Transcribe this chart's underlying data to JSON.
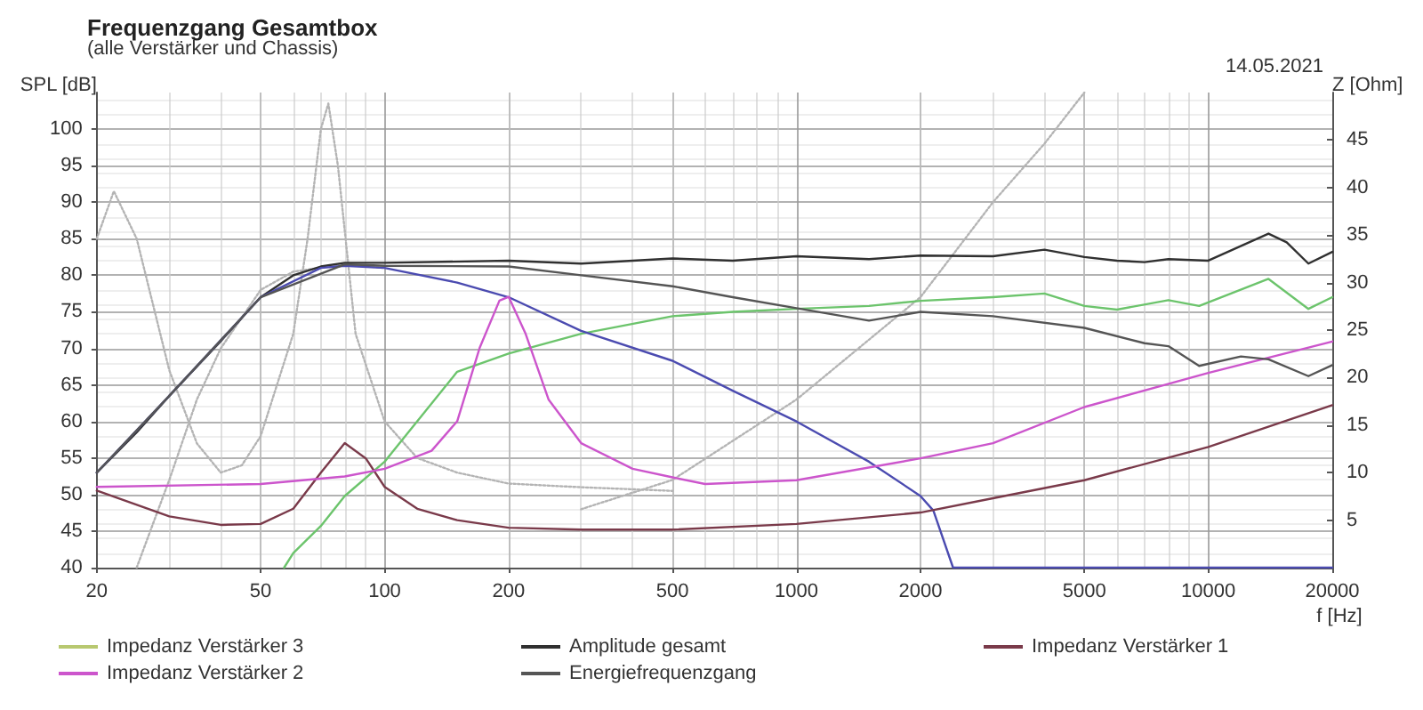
{
  "chart_data": {
    "type": "line",
    "title": "Frequenzgang Gesamtbox",
    "subtitle": "(alle Verstärker und Chassis)",
    "xlabel": "f [Hz]",
    "ylabel": "SPL [dB]",
    "y2label": "Z [Ohm]",
    "annotations": [
      "14.05.2021"
    ],
    "log": "x",
    "xlim": [
      20,
      20000
    ],
    "xticks": [
      20,
      50,
      100,
      200,
      500,
      1000,
      2000,
      5000,
      10000,
      20000
    ],
    "ylim": [
      40,
      105
    ],
    "yticks": [
      40,
      45,
      50,
      55,
      60,
      65,
      70,
      75,
      80,
      85,
      90,
      95,
      100
    ],
    "y2lim": [
      0,
      50
    ],
    "y2ticks": [
      5,
      10,
      15,
      20,
      25,
      30,
      35,
      40,
      45
    ],
    "grid": true,
    "legend": "bottom",
    "marker": "none",
    "line_style": "solid",
    "series": [
      {
        "color": "#b4b4b4",
        "line_style": "dotted",
        "x": [
          20,
          22,
          25,
          30,
          35,
          40,
          45,
          50,
          60,
          65,
          70,
          73,
          77,
          85,
          100,
          120,
          150,
          200,
          300,
          500
        ],
        "values": [
          85,
          91.5,
          85,
          67,
          57,
          53,
          54,
          58,
          72,
          85,
          100,
          103.5,
          95,
          72,
          60,
          55,
          53,
          51.5,
          51,
          50.5
        ]
      },
      {
        "color": "#b4b4b4",
        "line_style": "dotted",
        "x": [
          25,
          30,
          35,
          40,
          50,
          60,
          80,
          100
        ],
        "values": [
          40,
          52,
          63,
          70,
          78,
          80.5,
          81.5,
          81
        ]
      },
      {
        "color": "#b4b4b4",
        "line_style": "dotted",
        "x": [
          300,
          500,
          1000,
          2000,
          3000,
          4000,
          5000
        ],
        "values": [
          48,
          52,
          63,
          77,
          90,
          98,
          105
        ]
      },
      {
        "color": "#6cc46c",
        "x": [
          57,
          60,
          70,
          80,
          100,
          150,
          200,
          300,
          500,
          700,
          1000,
          1500,
          2000,
          3000,
          4000,
          5000,
          6000,
          8000,
          9500,
          14000,
          17500,
          20000
        ],
        "values": [
          40,
          42,
          45.7,
          49.8,
          54.5,
          66.8,
          69.3,
          72,
          74.4,
          75,
          75.4,
          75.8,
          76.5,
          77,
          77.5,
          75.8,
          75.3,
          76.6,
          75.8,
          79.5,
          75.4,
          77
        ]
      },
      {
        "name": "Impedanz Verstärker 3",
        "color": "#b8c870",
        "axis": "y2"
      },
      {
        "name": "Amplitude gesamt",
        "color": "#303030",
        "x": [
          20,
          25,
          30,
          40,
          50,
          60,
          70,
          80,
          100,
          200,
          300,
          500,
          700,
          1000,
          1500,
          2000,
          3000,
          4000,
          5000,
          6000,
          7000,
          8000,
          10000,
          14000,
          15500,
          17500,
          20000
        ],
        "values": [
          53,
          58.5,
          63.5,
          71,
          77,
          80,
          81.2,
          81.7,
          81.7,
          82,
          81.6,
          82.3,
          82,
          82.6,
          82.2,
          82.7,
          82.6,
          83.5,
          82.5,
          82,
          81.8,
          82.2,
          82,
          85.7,
          84.5,
          81.6,
          83.2
        ]
      },
      {
        "color": "#4b4bb0",
        "x": [
          20,
          30,
          50,
          70,
          80,
          100,
          150,
          200,
          300,
          500,
          700,
          1000,
          1500,
          2000,
          2150,
          2400,
          20000
        ],
        "values": [
          53,
          63.5,
          77,
          81,
          81.3,
          81,
          79,
          77,
          72.4,
          68.3,
          64.2,
          60,
          54.5,
          49.8,
          47.8,
          40,
          40
        ]
      },
      {
        "name": "Impedanz Verstärker 1",
        "color": "#7a3a4a",
        "axis": "y2",
        "x": [
          20,
          30,
          40,
          50,
          60,
          70,
          80,
          90,
          100,
          120,
          150,
          200,
          300,
          500,
          1000,
          2000,
          3000,
          5000,
          10000,
          20000
        ],
        "values": [
          8.1,
          5.4,
          4.5,
          4.6,
          6.2,
          10,
          13.1,
          11.5,
          8.5,
          6.2,
          5,
          4.2,
          4,
          4,
          4.6,
          5.8,
          7.3,
          9.2,
          12.7,
          17.1
        ]
      },
      {
        "name": "Impedanz Verstärker 2",
        "color": "#cc55cc",
        "axis": "y2",
        "x": [
          20,
          50,
          80,
          100,
          130,
          150,
          170,
          190,
          200,
          220,
          250,
          300,
          400,
          500,
          600,
          1000,
          2000,
          3000,
          5000,
          10000,
          20000
        ],
        "values": [
          8.5,
          8.8,
          9.6,
          10.4,
          12.3,
          15.4,
          23.1,
          28.1,
          28.5,
          24.6,
          17.7,
          13.1,
          10.4,
          9.5,
          8.8,
          9.2,
          11.5,
          13.1,
          16.9,
          20.5,
          23.8
        ]
      },
      {
        "name": "Energiefrequenzgang",
        "color": "#555555",
        "x": [
          20,
          30,
          50,
          80,
          100,
          200,
          300,
          500,
          700,
          1000,
          1500,
          2000,
          3000,
          5000,
          7000,
          8000,
          9500,
          12000,
          14000,
          17500,
          20000
        ],
        "values": [
          53,
          63.5,
          77,
          81.5,
          81.3,
          81.2,
          80,
          78.5,
          77,
          75.5,
          73.8,
          75,
          74.4,
          72.8,
          70.7,
          70.3,
          67.6,
          68.9,
          68.5,
          66.2,
          67.7
        ]
      }
    ]
  }
}
